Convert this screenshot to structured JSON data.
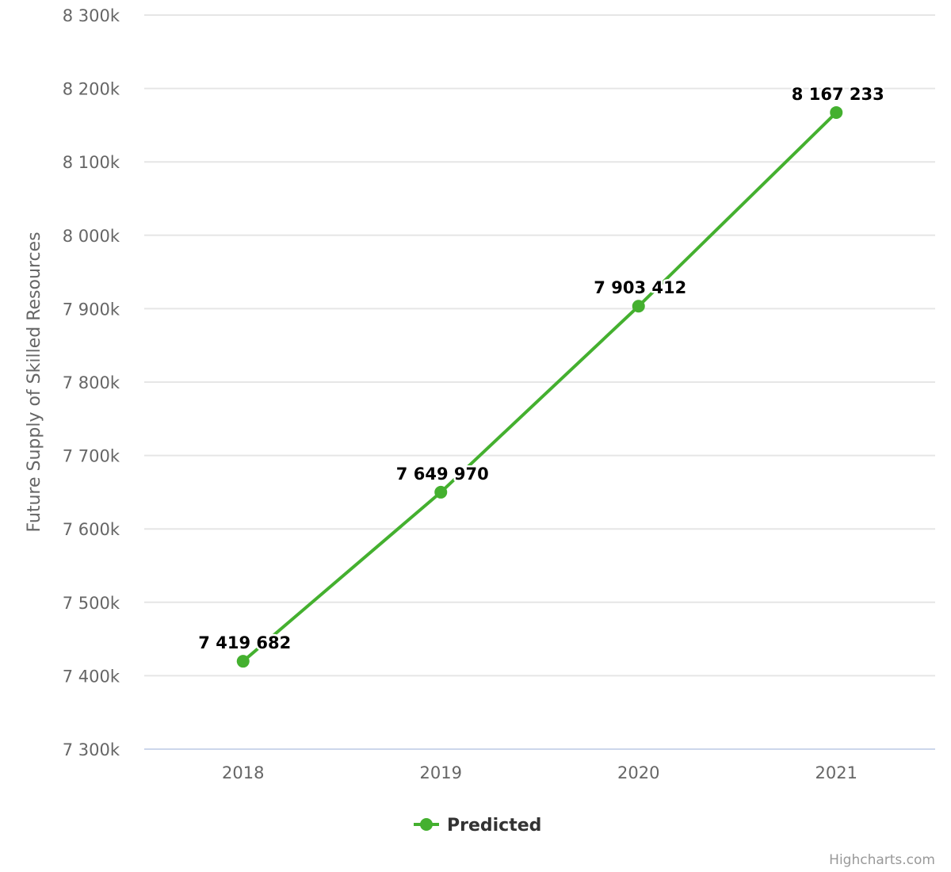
{
  "chart_data": {
    "type": "line",
    "categories": [
      "2018",
      "2019",
      "2020",
      "2021"
    ],
    "series": [
      {
        "name": "Predicted",
        "values": [
          7419682,
          7649970,
          7903412,
          8167233
        ],
        "color": "#44b02f"
      }
    ],
    "data_labels": [
      "7 419 682",
      "7 649 970",
      "7 903 412",
      "8 167 233"
    ],
    "title": "",
    "xlabel": "",
    "ylabel": "Future Supply of Skilled Resources",
    "ylim": [
      7300000,
      8300000
    ],
    "yticks": [
      7300000,
      7400000,
      7500000,
      7600000,
      7700000,
      7800000,
      7900000,
      8000000,
      8100000,
      8200000,
      8300000
    ],
    "ytick_labels": [
      "7 300k",
      "7 400k",
      "7 500k",
      "7 600k",
      "7 700k",
      "7 800k",
      "7 900k",
      "8 000k",
      "8 100k",
      "8 200k",
      "8 300k"
    ],
    "grid": true,
    "legend_position": "bottom-center",
    "colors": {
      "grid": "#e6e6e6",
      "axis": "#ccd6eb",
      "text": "#666666"
    }
  },
  "credits": "Highcharts.com"
}
